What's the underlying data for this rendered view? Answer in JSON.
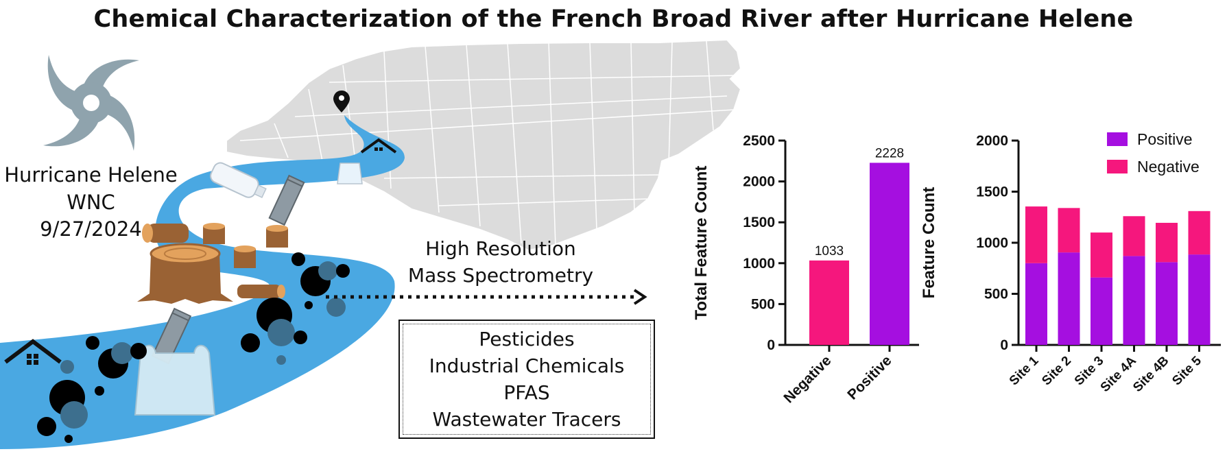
{
  "title": "Chemical Characterization of the French Broad River after Hurricane Helene",
  "storm": {
    "lines": [
      "Hurricane Helene",
      "WNC",
      "9/27/2024"
    ],
    "icon": "hurricane-icon"
  },
  "method_label": [
    "High Resolution",
    "Mass Spectrometry"
  ],
  "compound_classes": [
    "Pesticides",
    "Industrial Chemicals",
    "PFAS",
    "Wastewater Tracers"
  ],
  "colors": {
    "positive": "#a50fe0",
    "negative": "#f5177d",
    "river": "#4aa8e2",
    "map": "#d9d9d9"
  },
  "chart_data": [
    {
      "type": "bar",
      "title": "",
      "xlabel": "",
      "ylabel": "Total Feature Count",
      "categories": [
        "Negative",
        "Positive"
      ],
      "values": [
        1033,
        2228
      ],
      "data_labels": [
        "1033",
        "2228"
      ],
      "bar_colors": [
        "#f5177d",
        "#a50fe0"
      ],
      "ylim": [
        0,
        2500
      ],
      "yticks": [
        0,
        500,
        1000,
        1500,
        2000,
        2500
      ],
      "grid": false
    },
    {
      "type": "bar",
      "stacked": true,
      "title": "",
      "xlabel": "",
      "ylabel": "Feature Count",
      "categories": [
        "Site 1",
        "Site 2",
        "Site 3",
        "Site 4A",
        "Site 4B",
        "Site 5"
      ],
      "series": [
        {
          "name": "Positive",
          "color": "#a50fe0",
          "values": [
            800,
            905,
            660,
            870,
            810,
            885
          ]
        },
        {
          "name": "Negative",
          "color": "#f5177d",
          "values": [
            555,
            435,
            440,
            390,
            385,
            425
          ]
        }
      ],
      "ylim": [
        0,
        2000
      ],
      "yticks": [
        0,
        500,
        1000,
        1500,
        2000
      ],
      "legend": "top-right",
      "grid": false
    }
  ]
}
